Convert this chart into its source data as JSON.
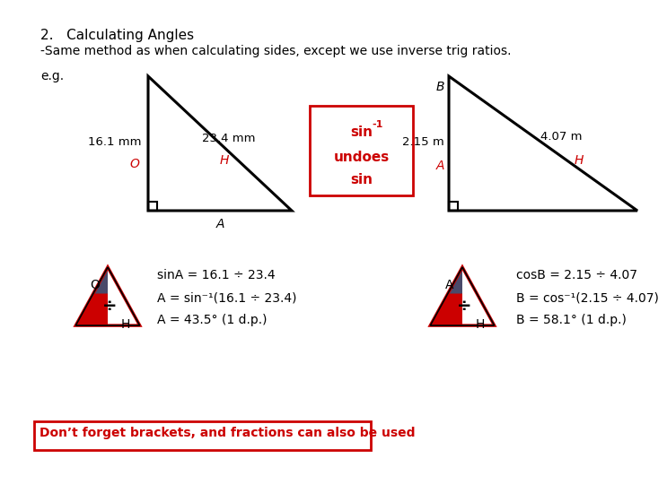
{
  "title1": "2.   Calculating Angles",
  "title2": "-Same method as when calculating sides, except we use inverse trig ratios.",
  "eg_label": "e.g.",
  "tri1_label_top": "23.4 mm",
  "tri1_label_H": "H",
  "tri1_label_O": "16.1 mm",
  "tri1_label_O2": "O",
  "tri1_label_A": "A",
  "box_line1": "sin-1",
  "box_line2": "undoes",
  "box_line3": "sin",
  "tri2_label_side": "2.15 m",
  "tri2_label_A": "A",
  "tri2_label_hyp": "4.07 m",
  "tri2_label_H": "H",
  "tri2_label_B": "B",
  "eq1_line1": "sinA = 16.1 ÷ 23.4",
  "eq1_line2": "A = sin-1(16.1 ÷ 23.4)",
  "eq1_line3": "A = 43.5° (1 d.p.)",
  "eq2_line1": "cosB = 2.15 ÷ 4.07",
  "eq2_line2": "B = cos-1(2.15 ÷ 4.07)",
  "eq2_line3": "B = 58.1° (1 d.p.)",
  "footer": "Don’t forget brackets, and fractions can also be used",
  "red": "#cc0000",
  "black": "#000000",
  "white": "#ffffff",
  "darkblue": "#4a4a6a",
  "bg": "#ffffff"
}
